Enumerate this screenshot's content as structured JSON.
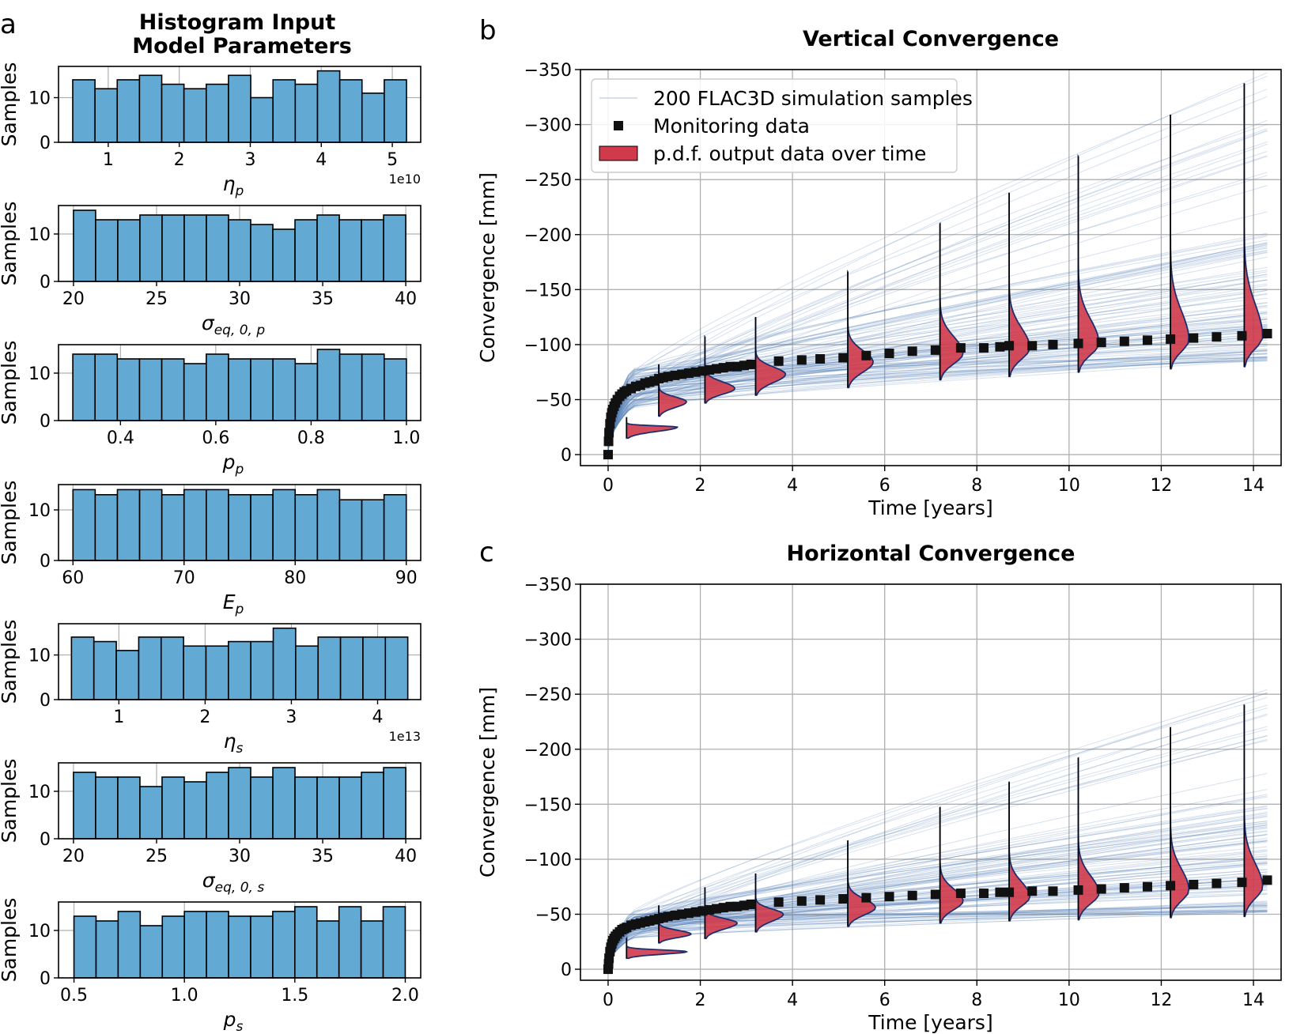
{
  "panel_a": {
    "letter": "a",
    "title_line1": "Histogram Input",
    "title_line2": "Model Parameters",
    "ylabel": "Samples"
  },
  "panel_b": {
    "letter": "b"
  },
  "panel_c": {
    "letter": "c"
  },
  "colors": {
    "hist_fill": "#62a9d4",
    "hist_edge": "#000000",
    "grid": "#b0b0b0",
    "sim_line": "#4a78b0",
    "pdf_fill": "#d03a4a",
    "pdf_edge": "#1f2f6e",
    "marker": "#111111"
  },
  "chart_data": [
    {
      "type": "bar",
      "id": "eta_p",
      "xlabel_sym": "η",
      "xlabel_sub": "p",
      "offset_text": "1e10",
      "xlim": [
        0.3,
        5.4
      ],
      "ylim": [
        0,
        17
      ],
      "bin_range": [
        0.5,
        5.2
      ],
      "xticks": [
        1,
        2,
        3,
        4,
        5
      ],
      "xtick_labels": [
        "1",
        "2",
        "3",
        "4",
        "5"
      ],
      "yticks": [
        0,
        10
      ],
      "ytick_labels": [
        "0",
        "10"
      ],
      "values": [
        14,
        12,
        14,
        15,
        13,
        12,
        13,
        15,
        10,
        14,
        13,
        16,
        14,
        11,
        14
      ]
    },
    {
      "type": "bar",
      "id": "sigma_eq0_p",
      "xlabel_sym": "σ",
      "xlabel_sub": "eq, 0, p",
      "offset_text": "",
      "xlim": [
        19.1,
        40.9
      ],
      "ylim": [
        0,
        16
      ],
      "bin_range": [
        20,
        40
      ],
      "xticks": [
        20,
        25,
        30,
        35,
        40
      ],
      "xtick_labels": [
        "20",
        "25",
        "30",
        "35",
        "40"
      ],
      "yticks": [
        0,
        10
      ],
      "ytick_labels": [
        "0",
        "10"
      ],
      "values": [
        15,
        13,
        13,
        14,
        14,
        14,
        14,
        13,
        12,
        11,
        13,
        14,
        13,
        13,
        14
      ]
    },
    {
      "type": "bar",
      "id": "p_p",
      "xlabel_sym": "p",
      "xlabel_sub": "p",
      "offset_text": "",
      "xlim": [
        0.27,
        1.03
      ],
      "ylim": [
        0,
        16
      ],
      "bin_range": [
        0.3,
        1.0
      ],
      "xticks": [
        0.4,
        0.6,
        0.8,
        1.0
      ],
      "xtick_labels": [
        "0.4",
        "0.6",
        "0.8",
        "1.0"
      ],
      "yticks": [
        0,
        10
      ],
      "ytick_labels": [
        "0",
        "10"
      ],
      "values": [
        14,
        14,
        13,
        13,
        13,
        12,
        14,
        13,
        13,
        13,
        12,
        15,
        14,
        14,
        13
      ]
    },
    {
      "type": "bar",
      "id": "E_p",
      "xlabel_sym": "E",
      "xlabel_sub": "p",
      "offset_text": "",
      "xlim": [
        58.7,
        91.3
      ],
      "ylim": [
        0,
        15
      ],
      "bin_range": [
        60,
        90
      ],
      "xticks": [
        60,
        70,
        80,
        90
      ],
      "xtick_labels": [
        "60",
        "70",
        "80",
        "90"
      ],
      "yticks": [
        0,
        10
      ],
      "ytick_labels": [
        "0",
        "10"
      ],
      "values": [
        14,
        13,
        14,
        14,
        13,
        14,
        14,
        13,
        13,
        14,
        13,
        14,
        12,
        12,
        13
      ]
    },
    {
      "type": "bar",
      "id": "eta_s",
      "xlabel_sym": "η",
      "xlabel_sub": "s",
      "offset_text": "1e13",
      "xlim": [
        0.3,
        4.5
      ],
      "ylim": [
        0,
        17
      ],
      "bin_range": [
        0.45,
        4.35
      ],
      "xticks": [
        1,
        2,
        3,
        4
      ],
      "xtick_labels": [
        "1",
        "2",
        "3",
        "4"
      ],
      "yticks": [
        0,
        10
      ],
      "ytick_labels": [
        "0",
        "10"
      ],
      "values": [
        14,
        13,
        11,
        14,
        14,
        12,
        12,
        13,
        13,
        16,
        12,
        14,
        14,
        14,
        14
      ]
    },
    {
      "type": "bar",
      "id": "sigma_eq0_s",
      "xlabel_sym": "σ",
      "xlabel_sub": "eq, 0, s",
      "offset_text": "",
      "xlim": [
        19.1,
        40.9
      ],
      "ylim": [
        0,
        16
      ],
      "bin_range": [
        20,
        40
      ],
      "xticks": [
        20,
        25,
        30,
        35,
        40
      ],
      "xtick_labels": [
        "20",
        "25",
        "30",
        "35",
        "40"
      ],
      "yticks": [
        0,
        10
      ],
      "ytick_labels": [
        "0",
        "10"
      ],
      "values": [
        14,
        13,
        13,
        11,
        13,
        12,
        14,
        15,
        13,
        15,
        13,
        13,
        13,
        14,
        15
      ]
    },
    {
      "type": "bar",
      "id": "p_s",
      "xlabel_sym": "p",
      "xlabel_sub": "s",
      "offset_text": "",
      "xlim": [
        0.43,
        2.07
      ],
      "ylim": [
        0,
        16
      ],
      "bin_range": [
        0.5,
        2.0
      ],
      "xticks": [
        0.5,
        1.0,
        1.5,
        2.0
      ],
      "xtick_labels": [
        "0.5",
        "1.0",
        "1.5",
        "2.0"
      ],
      "yticks": [
        0,
        10
      ],
      "ytick_labels": [
        "0",
        "10"
      ],
      "values": [
        13,
        12,
        14,
        11,
        13,
        14,
        14,
        13,
        13,
        14,
        15,
        12,
        15,
        12,
        15
      ]
    },
    {
      "type": "line",
      "id": "vertical",
      "title": "Vertical Convergence",
      "xlabel": "Time [years]",
      "ylabel": "Convergence [mm]",
      "xlim": [
        -0.6,
        14.6
      ],
      "ylim": [
        10,
        -350
      ],
      "xticks": [
        0,
        2,
        4,
        6,
        8,
        10,
        12,
        14
      ],
      "xtick_labels": [
        "0",
        "2",
        "4",
        "6",
        "8",
        "10",
        "12",
        "14"
      ],
      "yticks": [
        -350,
        -300,
        -250,
        -200,
        -150,
        -100,
        -50,
        0
      ],
      "ytick_labels": [
        "−350",
        "−300",
        "−250",
        "−200",
        "−150",
        "−100",
        "−50",
        "0"
      ],
      "legend": [
        "200 FLAC3D simulation samples",
        "Monitoring data",
        "p.d.f. output data over time"
      ],
      "monitoring": {
        "x": [
          0,
          0.01,
          0.02,
          0.04,
          0.06,
          0.08,
          0.1,
          0.13,
          0.16,
          0.2,
          0.25,
          0.3,
          0.35,
          0.4,
          0.5,
          0.6,
          0.7,
          0.8,
          0.9,
          1.0,
          1.1,
          1.2,
          1.3,
          1.45,
          1.6,
          1.75,
          1.9,
          2.05,
          2.2,
          2.35,
          2.5,
          2.65,
          2.8,
          2.95,
          3.1,
          3.7,
          4.2,
          4.6,
          5.1,
          5.6,
          6.1,
          6.6,
          7.1,
          7.65,
          8.15,
          8.5,
          8.7,
          9.2,
          9.65,
          10.2,
          10.7,
          11.2,
          11.7,
          12.2,
          12.7,
          13.2,
          13.75,
          14.3
        ],
        "y": [
          0,
          -12,
          -20,
          -28,
          -34,
          -38,
          -41,
          -44,
          -47,
          -50,
          -53,
          -55,
          -57,
          -58,
          -60,
          -62,
          -63,
          -65,
          -66,
          -67,
          -69,
          -70,
          -71,
          -72,
          -73,
          -74,
          -75,
          -76,
          -77,
          -78,
          -79,
          -80,
          -80,
          -81,
          -82,
          -85,
          -86,
          -87,
          -88,
          -90,
          -92,
          -94,
          -95,
          -97,
          -97,
          -98,
          -99,
          -99,
          -100,
          -101,
          -102,
          -103,
          -104,
          -105,
          -106,
          -107,
          -108,
          -110
        ]
      },
      "pdf_times": [
        0.4,
        1.1,
        2.1,
        3.2,
        5.2,
        7.2,
        8.7,
        10.2,
        12.2,
        13.8
      ],
      "pdf_modes": [
        -25,
        -48,
        -60,
        -73,
        -84,
        -92,
        -97,
        -101,
        -104,
        -107
      ],
      "pdf_low": [
        -15,
        -35,
        -47,
        -54,
        -61,
        -68,
        -71,
        -75,
        -78,
        -80
      ],
      "pdf_high": [
        -34,
        -82,
        -107,
        -125,
        -166,
        -210,
        -238,
        -271,
        -309,
        -337
      ],
      "pdf_widths": [
        1.1,
        0.6,
        0.65,
        0.65,
        0.55,
        0.5,
        0.45,
        0.45,
        0.4,
        0.4
      ],
      "sim_band_end_low": -85,
      "sim_band_end_high": -205,
      "sim_band_end_max": -355
    },
    {
      "type": "line",
      "id": "horizontal",
      "title": "Horizontal Convergence",
      "xlabel": "Time [years]",
      "ylabel": "Convergence [mm]",
      "xlim": [
        -0.6,
        14.6
      ],
      "ylim": [
        10,
        -350
      ],
      "xticks": [
        0,
        2,
        4,
        6,
        8,
        10,
        12,
        14
      ],
      "xtick_labels": [
        "0",
        "2",
        "4",
        "6",
        "8",
        "10",
        "12",
        "14"
      ],
      "yticks": [
        -350,
        -300,
        -250,
        -200,
        -150,
        -100,
        -50,
        0
      ],
      "ytick_labels": [
        "−350",
        "−300",
        "−250",
        "−200",
        "−150",
        "−100",
        "−50",
        "0"
      ],
      "monitoring": {
        "x": [
          0,
          0.01,
          0.02,
          0.04,
          0.06,
          0.08,
          0.1,
          0.13,
          0.16,
          0.2,
          0.25,
          0.3,
          0.35,
          0.4,
          0.5,
          0.6,
          0.7,
          0.8,
          0.9,
          1.0,
          1.1,
          1.2,
          1.3,
          1.45,
          1.6,
          1.75,
          1.9,
          2.05,
          2.2,
          2.35,
          2.5,
          2.65,
          2.8,
          2.95,
          3.1,
          3.7,
          4.2,
          4.6,
          5.1,
          5.6,
          6.1,
          6.6,
          7.1,
          7.65,
          8.15,
          8.5,
          8.7,
          9.2,
          9.65,
          10.2,
          10.7,
          11.2,
          11.7,
          12.2,
          12.7,
          13.2,
          13.75,
          14.3
        ],
        "y": [
          0,
          -5,
          -10,
          -16,
          -20,
          -23,
          -26,
          -28,
          -30,
          -32,
          -34,
          -36,
          -37,
          -38,
          -40,
          -41,
          -42,
          -43,
          -44,
          -45,
          -46,
          -47,
          -48,
          -49,
          -50,
          -51,
          -52,
          -53,
          -54,
          -55,
          -56,
          -57,
          -57,
          -58,
          -59,
          -61,
          -62,
          -63,
          -64,
          -65,
          -66,
          -67,
          -68,
          -69,
          -69,
          -70,
          -70,
          -71,
          -71,
          -72,
          -73,
          -74,
          -75,
          -76,
          -77,
          -78,
          -79,
          -81
        ]
      },
      "pdf_times": [
        0.4,
        1.1,
        2.1,
        3.2,
        5.2,
        7.2,
        8.7,
        10.2,
        12.2,
        13.8
      ],
      "pdf_modes": [
        -16,
        -32,
        -42,
        -50,
        -56,
        -62,
        -66,
        -69,
        -72,
        -75
      ],
      "pdf_low": [
        -10,
        -24,
        -28,
        -34,
        -39,
        -42,
        -44,
        -45,
        -47,
        -48
      ],
      "pdf_high": [
        -28,
        -58,
        -74,
        -87,
        -117,
        -147,
        -170,
        -192,
        -220,
        -240
      ],
      "pdf_widths": [
        1.3,
        0.7,
        0.7,
        0.6,
        0.6,
        0.5,
        0.45,
        0.45,
        0.4,
        0.4
      ],
      "sim_band_end_low": -52,
      "sim_band_end_high": -150,
      "sim_band_end_max": -255
    }
  ]
}
